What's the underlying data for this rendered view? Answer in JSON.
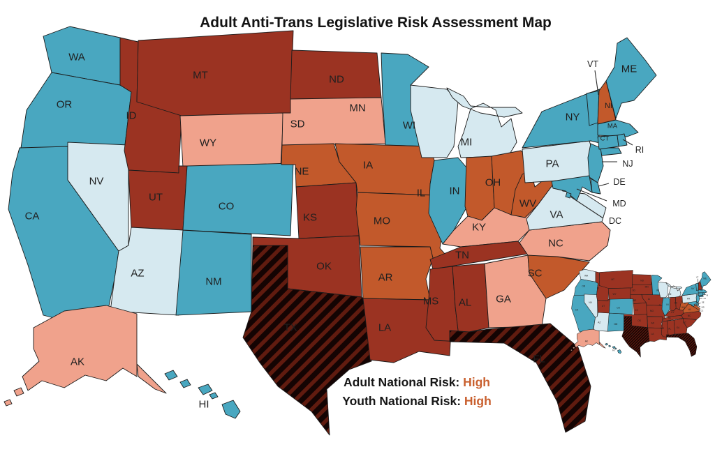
{
  "title": "Adult Anti-Trans Legislative Risk Assessment Map",
  "legend": {
    "adult_prefix": "Adult National Risk: ",
    "adult_value": "High",
    "youth_prefix": "Youth National Risk: ",
    "youth_value": "High"
  },
  "palette": {
    "teal": "#49a7c0",
    "light_blue": "#d6e9f0",
    "salmon": "#f0a28c",
    "orange": "#c2592b",
    "dark_red": "#9b3322",
    "hatch_black": "#140403",
    "hatch_stripe": "#601b0f",
    "border": "#1b1b1b",
    "label": "#1f1f1f",
    "highlight_text": "#c9602f"
  },
  "maps": {
    "main": "adult",
    "inset": "youth"
  },
  "states": [
    {
      "code": "WA",
      "adult": "teal",
      "youth": "light_blue"
    },
    {
      "code": "OR",
      "adult": "teal",
      "youth": "teal"
    },
    {
      "code": "CA",
      "adult": "teal",
      "youth": "teal"
    },
    {
      "code": "NV",
      "adult": "light_blue",
      "youth": "light_blue"
    },
    {
      "code": "ID",
      "adult": "dark_red",
      "youth": "dark_red"
    },
    {
      "code": "MT",
      "adult": "dark_red",
      "youth": "dark_red"
    },
    {
      "code": "WY",
      "adult": "salmon",
      "youth": "dark_red"
    },
    {
      "code": "UT",
      "adult": "dark_red",
      "youth": "dark_red"
    },
    {
      "code": "AZ",
      "adult": "light_blue",
      "youth": "light_blue"
    },
    {
      "code": "NM",
      "adult": "teal",
      "youth": "teal"
    },
    {
      "code": "CO",
      "adult": "teal",
      "youth": "teal"
    },
    {
      "code": "ND",
      "adult": "dark_red",
      "youth": "dark_red"
    },
    {
      "code": "SD",
      "adult": "salmon",
      "youth": "dark_red"
    },
    {
      "code": "NE",
      "adult": "orange",
      "youth": "dark_red"
    },
    {
      "code": "KS",
      "adult": "dark_red",
      "youth": "dark_red"
    },
    {
      "code": "OK",
      "adult": "dark_red",
      "youth": "dark_red"
    },
    {
      "code": "TX",
      "adult": "hatch",
      "youth": "hatch"
    },
    {
      "code": "MN",
      "adult": "teal",
      "youth": "teal"
    },
    {
      "code": "IA",
      "adult": "orange",
      "youth": "dark_red"
    },
    {
      "code": "MO",
      "adult": "orange",
      "youth": "dark_red"
    },
    {
      "code": "AR",
      "adult": "orange",
      "youth": "dark_red"
    },
    {
      "code": "LA",
      "adult": "dark_red",
      "youth": "dark_red"
    },
    {
      "code": "WI",
      "adult": "light_blue",
      "youth": "light_blue"
    },
    {
      "code": "IL",
      "adult": "teal",
      "youth": "teal"
    },
    {
      "code": "MI",
      "adult": "light_blue",
      "youth": "light_blue"
    },
    {
      "code": "IN",
      "adult": "orange",
      "youth": "dark_red"
    },
    {
      "code": "OH",
      "adult": "orange",
      "youth": "dark_red"
    },
    {
      "code": "KY",
      "adult": "salmon",
      "youth": "dark_red"
    },
    {
      "code": "TN",
      "adult": "dark_red",
      "youth": "dark_red"
    },
    {
      "code": "MS",
      "adult": "dark_red",
      "youth": "dark_red"
    },
    {
      "code": "AL",
      "adult": "dark_red",
      "youth": "dark_red"
    },
    {
      "code": "GA",
      "adult": "salmon",
      "youth": "dark_red"
    },
    {
      "code": "FL",
      "adult": "hatch",
      "youth": "hatch"
    },
    {
      "code": "SC",
      "adult": "orange",
      "youth": "dark_red"
    },
    {
      "code": "NC",
      "adult": "salmon",
      "youth": "dark_red"
    },
    {
      "code": "VA",
      "adult": "light_blue",
      "youth": "orange"
    },
    {
      "code": "WV",
      "adult": "orange",
      "youth": "orange"
    },
    {
      "code": "PA",
      "adult": "light_blue",
      "youth": "light_blue"
    },
    {
      "code": "NY",
      "adult": "teal",
      "youth": "teal"
    },
    {
      "code": "NJ",
      "adult": "teal",
      "youth": "teal"
    },
    {
      "code": "DE",
      "adult": "teal",
      "youth": "teal"
    },
    {
      "code": "MD",
      "adult": "teal",
      "youth": "teal"
    },
    {
      "code": "DC",
      "adult": "teal",
      "youth": "teal"
    },
    {
      "code": "VT",
      "adult": "teal",
      "youth": "teal"
    },
    {
      "code": "NH",
      "adult": "orange",
      "youth": "dark_red"
    },
    {
      "code": "MA",
      "adult": "teal",
      "youth": "teal"
    },
    {
      "code": "CT",
      "adult": "teal",
      "youth": "teal"
    },
    {
      "code": "RI",
      "adult": "teal",
      "youth": "teal"
    },
    {
      "code": "ME",
      "adult": "teal",
      "youth": "teal"
    },
    {
      "code": "AK",
      "adult": "salmon",
      "youth": "salmon"
    },
    {
      "code": "HI",
      "adult": "teal",
      "youth": "teal"
    }
  ]
}
